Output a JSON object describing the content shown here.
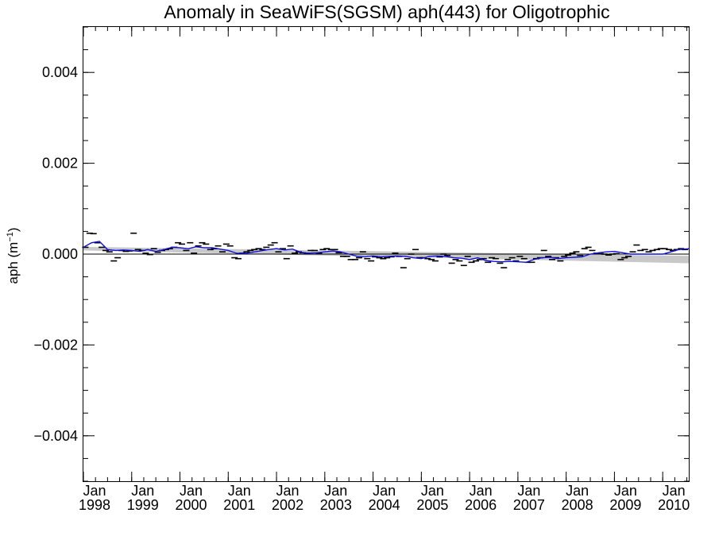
{
  "chart_data": {
    "type": "line",
    "title": "Anomaly in SeaWiFS(SGSM) aph(443) for Oligotrophic",
    "ylabel": "aph (m",
    "ylabel_exponent": "−1",
    "ylabel_close": ")",
    "xlabel": "",
    "xlim": [
      "1998-01",
      "2010-07"
    ],
    "ylim": [
      -0.005,
      0.005
    ],
    "yticks": [
      {
        "value": 0.004,
        "label": "0.004"
      },
      {
        "value": 0.002,
        "label": "0.002"
      },
      {
        "value": 0.0,
        "label": "0.000"
      },
      {
        "value": -0.002,
        "label": "−0.002"
      },
      {
        "value": -0.004,
        "label": "−0.004"
      }
    ],
    "xticks": [
      {
        "month": "Jan",
        "year": "1998",
        "value": 1998.0
      },
      {
        "month": "Jan",
        "year": "1999",
        "value": 1999.0
      },
      {
        "month": "Jan",
        "year": "2000",
        "value": 2000.0
      },
      {
        "month": "Jan",
        "year": "2001",
        "value": 2001.0
      },
      {
        "month": "Jan",
        "year": "2002",
        "value": 2002.0
      },
      {
        "month": "Jan",
        "year": "2003",
        "value": 2003.0
      },
      {
        "month": "Jan",
        "year": "2004",
        "value": 2004.0
      },
      {
        "month": "Jan",
        "year": "2005",
        "value": 2005.0
      },
      {
        "month": "Jan",
        "year": "2006",
        "value": 2006.0
      },
      {
        "month": "Jan",
        "year": "2007",
        "value": 2007.0
      },
      {
        "month": "Jan",
        "year": "2008",
        "value": 2008.0
      },
      {
        "month": "Jan",
        "year": "2009",
        "value": 2009.0
      },
      {
        "month": "Jan",
        "year": "2010",
        "value": 2010.0
      }
    ],
    "grid": false,
    "zero_line": 0.0,
    "colors": {
      "smooth_line": "#1010e0",
      "markers": "#000000",
      "band": "#c8c8c8",
      "zero_line": "#000000"
    },
    "trend_band": {
      "x": [
        1998.0,
        2010.54
      ],
      "lower": [
        8e-05,
        -0.0002
      ],
      "upper": [
        0.00016,
        -4e-05
      ]
    },
    "series": [
      {
        "kind": "monthly_anomaly_markers",
        "x": [
          1998.04,
          1998.13,
          1998.21,
          1998.29,
          1998.38,
          1998.46,
          1998.54,
          1998.63,
          1998.71,
          1998.79,
          1998.88,
          1998.96,
          1999.04,
          1999.13,
          1999.21,
          1999.29,
          1999.38,
          1999.46,
          1999.54,
          1999.63,
          1999.71,
          1999.79,
          1999.88,
          1999.96,
          2000.04,
          2000.13,
          2000.21,
          2000.29,
          2000.38,
          2000.46,
          2000.54,
          2000.63,
          2000.71,
          2000.79,
          2000.88,
          2000.96,
          2001.04,
          2001.13,
          2001.21,
          2001.29,
          2001.38,
          2001.46,
          2001.54,
          2001.63,
          2001.71,
          2001.79,
          2001.88,
          2001.96,
          2002.04,
          2002.13,
          2002.21,
          2002.29,
          2002.38,
          2002.46,
          2002.54,
          2002.63,
          2002.71,
          2002.79,
          2002.88,
          2002.96,
          2003.04,
          2003.13,
          2003.21,
          2003.29,
          2003.38,
          2003.46,
          2003.54,
          2003.63,
          2003.71,
          2003.79,
          2003.88,
          2003.96,
          2004.04,
          2004.13,
          2004.21,
          2004.29,
          2004.38,
          2004.46,
          2004.54,
          2004.63,
          2004.71,
          2004.79,
          2004.88,
          2004.96,
          2005.04,
          2005.13,
          2005.21,
          2005.29,
          2005.38,
          2005.46,
          2005.54,
          2005.63,
          2005.71,
          2005.79,
          2005.88,
          2005.96,
          2006.04,
          2006.13,
          2006.21,
          2006.29,
          2006.38,
          2006.46,
          2006.54,
          2006.63,
          2006.71,
          2006.79,
          2006.88,
          2006.96,
          2007.04,
          2007.13,
          2007.21,
          2007.29,
          2007.38,
          2007.46,
          2007.54,
          2007.63,
          2007.71,
          2007.79,
          2007.88,
          2007.96,
          2008.04,
          2008.13,
          2008.21,
          2008.29,
          2008.38,
          2008.46,
          2008.54,
          2008.63,
          2008.71,
          2008.79,
          2008.88,
          2008.96,
          2009.04,
          2009.13,
          2009.21,
          2009.29,
          2009.38,
          2009.46,
          2009.54,
          2009.63,
          2009.71,
          2009.79,
          2009.88,
          2009.96,
          2010.04,
          2010.13,
          2010.21,
          2010.29,
          2010.38,
          2010.46
        ],
        "y": [
          0.00015,
          0.00046,
          0.00045,
          0.00025,
          0.00015,
          8e-05,
          5e-05,
          -0.00015,
          -8e-05,
          8e-05,
          6e-05,
          7e-05,
          0.00046,
          0.0001,
          8e-05,
          2e-05,
          -1e-05,
          0.00012,
          4e-05,
          8e-05,
          0.0001,
          0.00012,
          0.00015,
          0.00025,
          0.00022,
          8e-05,
          0.00025,
          2e-05,
          0.00018,
          0.00025,
          0.00022,
          0.0001,
          0.00012,
          0.00018,
          5e-05,
          0.00022,
          0.00018,
          -8e-05,
          -0.0001,
          2e-05,
          5e-05,
          8e-05,
          0.0001,
          0.00012,
          0.0001,
          0.00015,
          0.0002,
          0.00025,
          5e-05,
          0.00012,
          -0.0001,
          0.00018,
          2e-05,
          5e-05,
          3e-05,
          2e-05,
          8e-05,
          8e-05,
          2e-05,
          0.0001,
          0.00012,
          0.0001,
          0.0001,
          3e-05,
          -5e-05,
          -5e-05,
          -0.00012,
          -0.00012,
          -8e-05,
          5e-05,
          -0.0001,
          -0.00015,
          -6e-05,
          -8e-05,
          -0.0001,
          -8e-05,
          -6e-05,
          2e-05,
          -5e-05,
          -0.0003,
          -0.0001,
          0.0,
          0.0001,
          -8e-05,
          -8e-05,
          -0.0001,
          -0.00012,
          -0.00015,
          -6e-05,
          0.0,
          -3e-05,
          -0.0002,
          -0.00012,
          -0.00015,
          -0.00025,
          -5e-05,
          -0.00018,
          -0.00015,
          -0.00012,
          -0.0001,
          -0.00018,
          -8e-05,
          -0.0001,
          -0.0002,
          -0.0003,
          -0.00012,
          -8e-05,
          -0.00015,
          -5e-05,
          -0.0001,
          -0.00018,
          -0.00018,
          -0.0001,
          -8e-05,
          8e-05,
          -5e-05,
          -0.00012,
          -8e-05,
          -0.00015,
          -5e-05,
          -2e-05,
          2e-05,
          5e-05,
          -3e-05,
          0.00012,
          0.00015,
          8e-05,
          2e-05,
          1e-05,
          0.0,
          -2e-05,
          0.0,
          1e-05,
          -0.00012,
          -8e-05,
          -5e-05,
          5e-05,
          0.0002,
          8e-05,
          0.0001,
          5e-05,
          8e-05,
          0.0001,
          0.00012,
          0.00012,
          0.0001,
          8e-05,
          0.0001,
          0.00012,
          0.0001
        ]
      },
      {
        "kind": "smoothed_line",
        "x": [
          1998.0,
          1998.17,
          1998.33,
          1998.5,
          1998.67,
          1998.83,
          1999.0,
          1999.17,
          1999.33,
          1999.5,
          1999.67,
          1999.83,
          2000.0,
          2000.17,
          2000.33,
          2000.5,
          2000.67,
          2000.83,
          2001.0,
          2001.17,
          2001.33,
          2001.5,
          2001.67,
          2001.83,
          2002.0,
          2002.17,
          2002.33,
          2002.5,
          2002.67,
          2002.83,
          2003.0,
          2003.17,
          2003.33,
          2003.5,
          2003.67,
          2003.83,
          2004.0,
          2004.17,
          2004.33,
          2004.5,
          2004.67,
          2004.83,
          2005.0,
          2005.17,
          2005.33,
          2005.5,
          2005.67,
          2005.83,
          2006.0,
          2006.17,
          2006.33,
          2006.5,
          2006.67,
          2006.83,
          2007.0,
          2007.17,
          2007.33,
          2007.5,
          2007.67,
          2007.83,
          2008.0,
          2008.17,
          2008.33,
          2008.5,
          2008.67,
          2008.83,
          2009.0,
          2009.17,
          2009.33,
          2009.5,
          2009.67,
          2009.83,
          2010.0,
          2010.17,
          2010.33,
          2010.54
        ],
        "y": [
          0.00015,
          0.00025,
          0.00028,
          0.0001,
          8e-05,
          9e-05,
          8e-05,
          6e-05,
          0.0001,
          6e-05,
          0.0001,
          0.00015,
          0.00014,
          0.00012,
          0.00016,
          0.00014,
          0.00014,
          0.00011,
          8e-05,
          2e-05,
          1e-05,
          4e-05,
          7e-05,
          0.0001,
          0.00012,
          9e-05,
          0.00011,
          4e-05,
          2e-05,
          3e-05,
          5e-05,
          7e-05,
          5e-05,
          0.0,
          -5e-05,
          -6e-05,
          -4e-05,
          -6e-05,
          -5e-05,
          -4e-05,
          -5e-05,
          -8e-05,
          -0.0001,
          -5e-05,
          -4e-05,
          -5e-05,
          -8e-05,
          -9e-05,
          -0.00012,
          -8e-05,
          -0.00014,
          -0.00016,
          -0.00017,
          -0.00016,
          -0.00017,
          -0.00018,
          -0.00012,
          -8e-05,
          -7e-05,
          -0.0001,
          -8e-05,
          -7e-05,
          -6e-05,
          0.0,
          3e-05,
          5e-05,
          6e-05,
          3e-05,
          0.0,
          0.0,
          0.0,
          0.0,
          0.0,
          5e-05,
          0.0001,
          0.00012
        ]
      }
    ]
  }
}
